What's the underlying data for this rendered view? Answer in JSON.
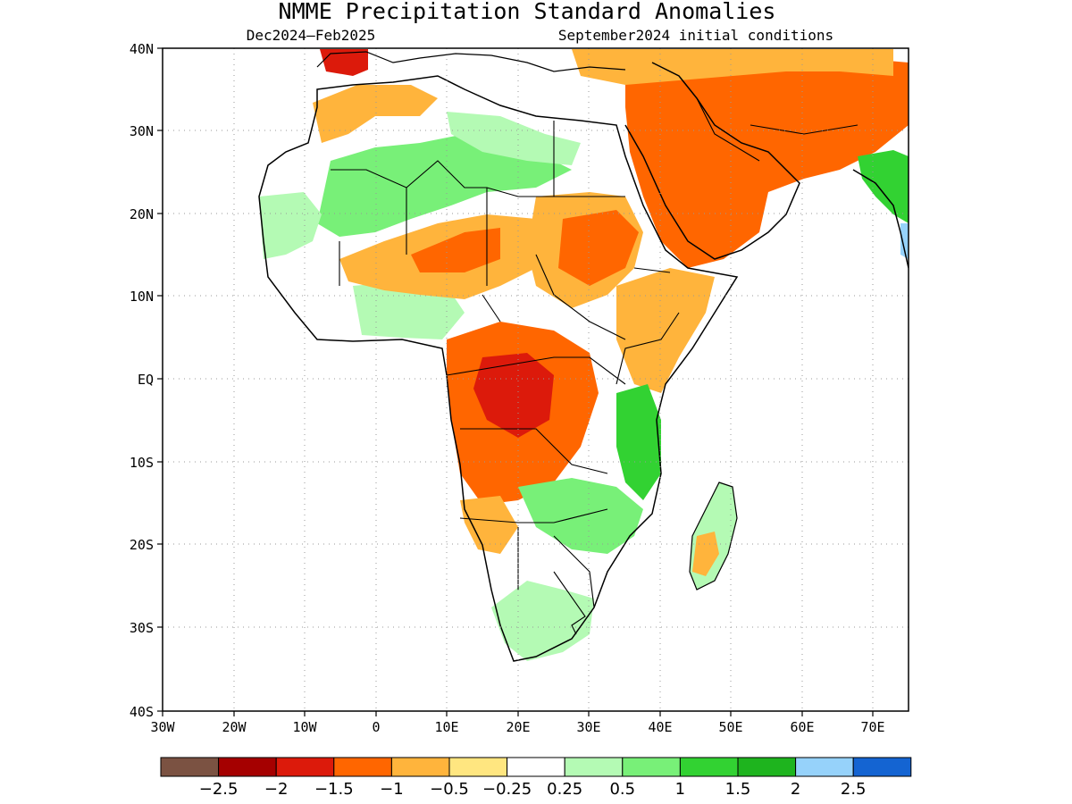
{
  "title": "NMME Precipitation Standard Anomalies",
  "subtitle_left": "Dec2024–Feb2025",
  "subtitle_right": "September2024 initial conditions",
  "lat_ticks": [
    "40N",
    "30N",
    "20N",
    "10N",
    "EQ",
    "10S",
    "20S",
    "30S",
    "40S"
  ],
  "lon_ticks": [
    "30W",
    "20W",
    "10W",
    "0",
    "10E",
    "20E",
    "30E",
    "40E",
    "50E",
    "60E",
    "70E"
  ],
  "colorbar": {
    "colors": [
      "#7b5242",
      "#a50000",
      "#dc1a0b",
      "#ff6600",
      "#ffb43c",
      "#ffe680",
      "#ffffff",
      "#b4fab4",
      "#78f078",
      "#32d232",
      "#1eb41e",
      "#96d2fa",
      "#1464d2"
    ],
    "labels": [
      "−2.5",
      "−2",
      "−1.5",
      "−1",
      "−0.5",
      "−0.25",
      "0.25",
      "0.5",
      "1",
      "1.5",
      "2",
      "2.5"
    ]
  }
}
